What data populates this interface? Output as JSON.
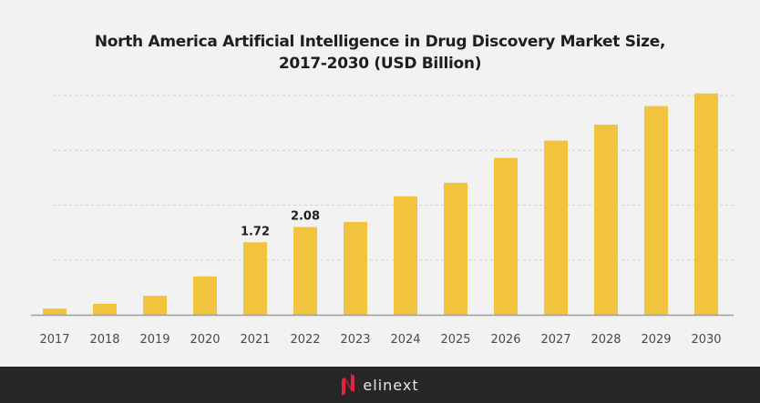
{
  "chart_data": {
    "type": "bar",
    "title": "North America Artificial Intelligence in Drug Discovery Market Size,",
    "subtitle": "2017-2030 (USD Billion)",
    "xlabel": "",
    "ylabel": "",
    "categories": [
      "2017",
      "2018",
      "2019",
      "2020",
      "2021",
      "2022",
      "2023",
      "2024",
      "2025",
      "2026",
      "2027",
      "2028",
      "2029",
      "2030"
    ],
    "values": [
      0.15,
      0.26,
      0.45,
      0.91,
      1.72,
      2.08,
      2.2,
      2.81,
      3.13,
      3.72,
      4.13,
      4.51,
      4.95,
      5.25
    ],
    "data_labels": {
      "2021": "1.72",
      "2022": "2.08"
    },
    "ylim": [
      0,
      5.2
    ],
    "gridlines": [
      1.3,
      2.6,
      3.9,
      5.2
    ],
    "grid": true,
    "y_tick_labels_visible": false,
    "bar_color": "#f2c43d",
    "legend": "none"
  },
  "footer": {
    "brand": "elinext",
    "brand_color": "#e3233f",
    "background": "#272727"
  }
}
